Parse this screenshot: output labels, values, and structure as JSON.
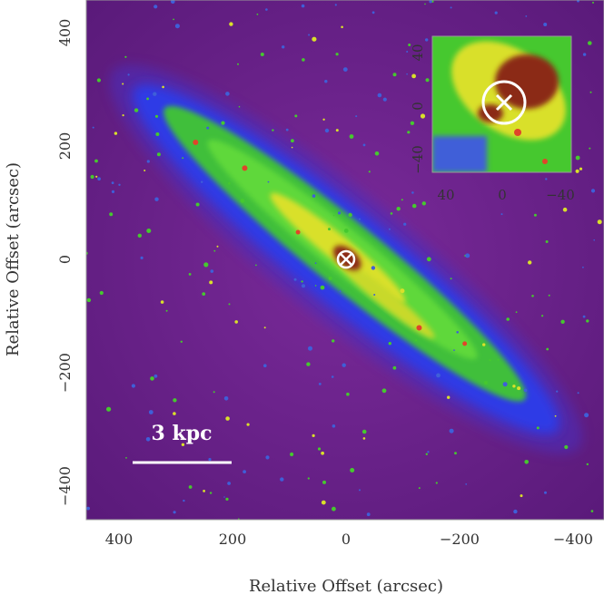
{
  "figure": {
    "x_axis_title": "Relative Offset (arcsec)",
    "y_axis_title": "Relative Offset (arcsec)",
    "x_ticks": [
      "400",
      "200",
      "0",
      "−200",
      "−400"
    ],
    "y_ticks": [
      "400",
      "200",
      "0",
      "−200",
      "−400"
    ],
    "scale_bar_label": "3 kpc",
    "inset_x_ticks": [
      "40",
      "0",
      "−40"
    ],
    "inset_y_ticks": [
      "40",
      "0",
      "−40"
    ],
    "colors": {
      "background": "#6a1f8a",
      "disk_outer": "#2f3be6",
      "disk_mid": "#46c82f",
      "disk_inner": "#d9e02a",
      "core": "#8b2a12",
      "markers": "#ffffff"
    },
    "icons": [
      "cross-marker-icon",
      "circle-marker-icon"
    ]
  }
}
